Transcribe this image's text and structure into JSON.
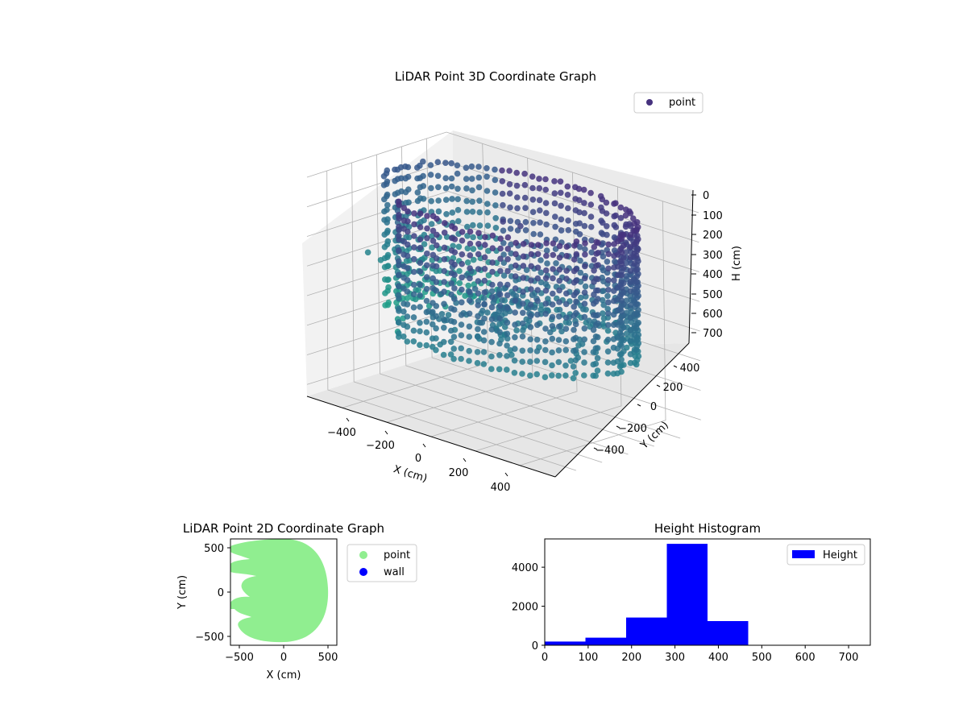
{
  "chart_data": [
    {
      "type": "scatter",
      "projection": "3d",
      "title": "LiDAR Point 3D Coordinate Graph",
      "xlabel": "X (cm)",
      "ylabel": "Y (cm)",
      "zlabel": "H (cm)",
      "x_ticks": [
        "−400",
        "−200",
        "0",
        "200",
        "400"
      ],
      "y_ticks": [
        "−400",
        "−200",
        "0",
        "200",
        "400"
      ],
      "z_ticks": [
        "0",
        "100",
        "200",
        "300",
        "400",
        "500",
        "600",
        "700"
      ],
      "xlim": [
        -560,
        560
      ],
      "ylim": [
        -560,
        560
      ],
      "zlim": [
        0,
        740
      ],
      "z_inverted": true,
      "grid": true,
      "colormap": "viridis",
      "legend": {
        "position": "upper-right",
        "label": "point"
      },
      "series": [
        {
          "name": "point",
          "description_points": [
            {
              "x": -520,
              "y": -150,
              "h": 300
            },
            {
              "x": -480,
              "y": -120,
              "h": 320
            },
            {
              "x": -440,
              "y": -80,
              "h": 280
            },
            {
              "x": -400,
              "y": -40,
              "h": 340
            },
            {
              "x": -350,
              "y": -20,
              "h": 300
            },
            {
              "x": -300,
              "y": 0,
              "h": 330
            },
            {
              "x": -250,
              "y": 40,
              "h": 310
            },
            {
              "x": -200,
              "y": 100,
              "h": 320
            },
            {
              "x": 0,
              "y": 0,
              "h": 90
            },
            {
              "x": 50,
              "y": 50,
              "h": 100
            }
          ]
        }
      ]
    },
    {
      "type": "scatter",
      "title": "LiDAR Point 2D Coordinate Graph",
      "xlabel": "X (cm)",
      "ylabel": "Y (cm)",
      "x_ticks": [
        "−500",
        "0",
        "500"
      ],
      "y_ticks": [
        "500",
        "0",
        "−500"
      ],
      "xlim": [
        -600,
        600
      ],
      "ylim": [
        -600,
        600
      ],
      "legend": {
        "position": "outside-right"
      },
      "series": [
        {
          "name": "point",
          "color": "#90ee90",
          "approx_region": "disc radius ~500 cm centered at (0,0) with notches on left side"
        },
        {
          "name": "wall",
          "color": "#0000ff",
          "values": []
        }
      ]
    },
    {
      "type": "bar",
      "title": "Height Histogram",
      "xlabel": "",
      "ylabel": "",
      "x_ticks": [
        "0",
        "100",
        "200",
        "300",
        "400",
        "500",
        "600",
        "700"
      ],
      "y_ticks": [
        "0",
        "2000",
        "4000"
      ],
      "xlim": [
        0,
        750
      ],
      "ylim": [
        0,
        5450
      ],
      "legend": {
        "position": "upper-right",
        "label": "Height"
      },
      "color": "#0000ff",
      "bins": [
        {
          "start": 0,
          "end": 93.75,
          "count": 190
        },
        {
          "start": 93.75,
          "end": 187.5,
          "count": 390
        },
        {
          "start": 187.5,
          "end": 281.25,
          "count": 1420
        },
        {
          "start": 281.25,
          "end": 375,
          "count": 5200
        },
        {
          "start": 375,
          "end": 468.75,
          "count": 1240
        },
        {
          "start": 468.75,
          "end": 562.5,
          "count": 0
        },
        {
          "start": 562.5,
          "end": 656.25,
          "count": 0
        },
        {
          "start": 656.25,
          "end": 750,
          "count": 0
        }
      ]
    }
  ]
}
